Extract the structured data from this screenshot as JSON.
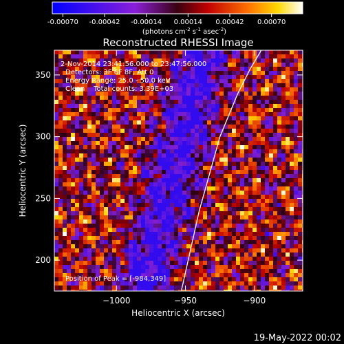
{
  "colorbar": {
    "ticks": [
      "-0.00070",
      "-0.00042",
      "-0.00014",
      "0.00014",
      "0.00042",
      "0.00070"
    ],
    "units_main": "(photons cm",
    "units_exp1": "-2",
    "units_mid1": " s",
    "units_exp2": "-1",
    "units_mid2": " asec",
    "units_exp3": "-2",
    "units_end": ")"
  },
  "chart_data": {
    "type": "heatmap",
    "title": "Reconstructed RHESSI Image",
    "xlabel": "Heliocentric X (arcsec)",
    "ylabel": "Heliocentric Y (arcsec)",
    "xlim": [
      -1045,
      -865
    ],
    "ylim": [
      175,
      370
    ],
    "xticks": [
      "−1000",
      "−950",
      "−900"
    ],
    "xtick_values": [
      -1000,
      -950,
      -900
    ],
    "yticks": [
      "200",
      "250",
      "300",
      "350"
    ],
    "ytick_values": [
      200,
      250,
      300,
      350
    ],
    "colorbar_range": [
      -0.0007,
      0.0007
    ],
    "limb": [
      [
        -953,
        175
      ],
      [
        -940,
        240
      ],
      [
        -925,
        300
      ],
      [
        -912,
        335
      ],
      [
        -903,
        355
      ],
      [
        -895,
        370
      ]
    ],
    "annotations": [
      "2-Nov-2014 23:41:56.000 to 23:47:56.000",
      "Detectors: 3F 6F 8F, Att 0",
      "Energy Range: 25.0 - 50.0 keV",
      "Clean    Total counts: 3.39E+03"
    ],
    "peak_label": "Position of Peak = [-984,349]"
  },
  "footer": {
    "timestamp": "19-May-2022 00:02"
  }
}
